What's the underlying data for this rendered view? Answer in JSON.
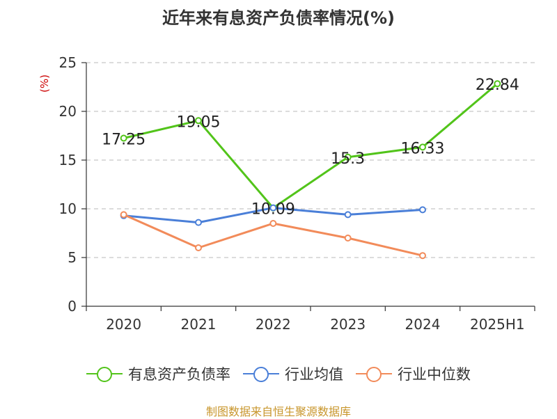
{
  "title": "近年来有息资产负债率情况(%)",
  "unit_label": "(%)",
  "source": "制图数据来自恒生聚源数据库",
  "chart_data": {
    "type": "line",
    "categories": [
      "2020",
      "2021",
      "2022",
      "2023",
      "2024",
      "2025H1"
    ],
    "ylim": [
      0,
      25
    ],
    "yticks": [
      0,
      5,
      10,
      15,
      20,
      25
    ],
    "grid": true,
    "legend_position": "bottom",
    "series": [
      {
        "name": "有息资产负债率",
        "color": "#52c41a",
        "values": [
          17.25,
          19.05,
          10.09,
          15.3,
          16.33,
          22.84
        ],
        "labels": [
          "17.25",
          "19.05",
          "10.09",
          "15.3",
          "16.33",
          "22.84"
        ]
      },
      {
        "name": "行业均值",
        "color": "#4a7fd8",
        "values": [
          9.3,
          8.6,
          10.1,
          9.4,
          9.9,
          null
        ]
      },
      {
        "name": "行业中位数",
        "color": "#f28b5a",
        "values": [
          9.4,
          6.0,
          8.5,
          7.0,
          5.2,
          null
        ]
      }
    ]
  }
}
